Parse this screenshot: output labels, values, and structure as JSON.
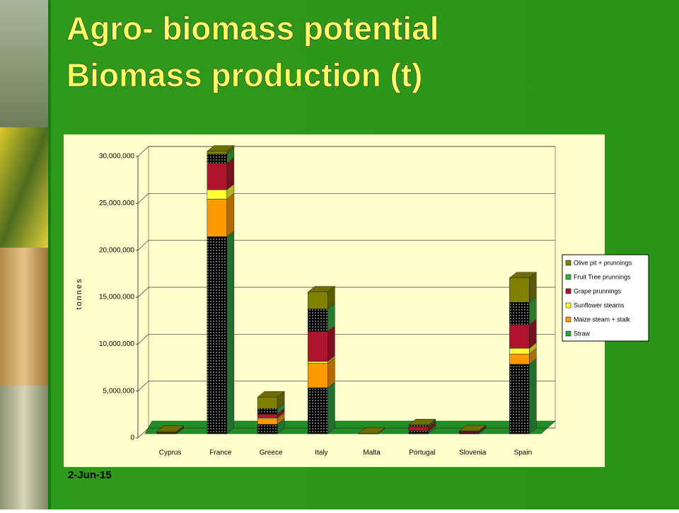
{
  "date": "2-Jun-15",
  "chart_data": {
    "type": "bar",
    "stacked": true,
    "title": "Agro- biomass  potential",
    "subtitle": "Biomass production (t)",
    "ylabel": "tonnes",
    "categories": [
      "Cyprus",
      "France",
      "Greece",
      "Italy",
      "Malta",
      "Portugal",
      "Slovenia",
      "Spain"
    ],
    "series": [
      {
        "name": "Straw",
        "color": "#2fa043",
        "values": [
          50000,
          21000000,
          1000000,
          4900000,
          10000,
          300000,
          100000,
          7400000
        ]
      },
      {
        "name": "Maize steam + stalk",
        "color": "#ff9a00",
        "values": [
          0,
          4000000,
          600000,
          2600000,
          0,
          50000,
          0,
          1100000
        ]
      },
      {
        "name": "Sunflower steams",
        "color": "#ffff33",
        "values": [
          0,
          1000000,
          100000,
          200000,
          0,
          0,
          0,
          600000
        ]
      },
      {
        "name": "Grape prunnings",
        "color": "#b0142c",
        "values": [
          50000,
          2800000,
          400000,
          3200000,
          10000,
          400000,
          100000,
          2500000
        ]
      },
      {
        "name": "Fruit Tree prunnings",
        "color": "#3fae3f",
        "values": [
          50000,
          1000000,
          600000,
          2400000,
          10000,
          150000,
          50000,
          2400000
        ]
      },
      {
        "name": "Olive pit + prunnings",
        "color": "#808000",
        "values": [
          100000,
          300000,
          1200000,
          1800000,
          20000,
          50000,
          50000,
          2600000
        ]
      }
    ],
    "ylim": [
      0,
      30000000
    ],
    "yticks": [
      0,
      {
        "value": 5000000,
        "label": "5,000,000"
      },
      {
        "value": 10000000,
        "label": "10,000,000"
      },
      {
        "value": 15000000,
        "label": "15,000,000"
      },
      {
        "value": 20000000,
        "label": "20,000,000"
      },
      {
        "value": 25000000,
        "label": "25,000,000"
      },
      {
        "value": 30000000,
        "label": "30,000,000"
      }
    ],
    "grid": true,
    "legend": "right"
  }
}
